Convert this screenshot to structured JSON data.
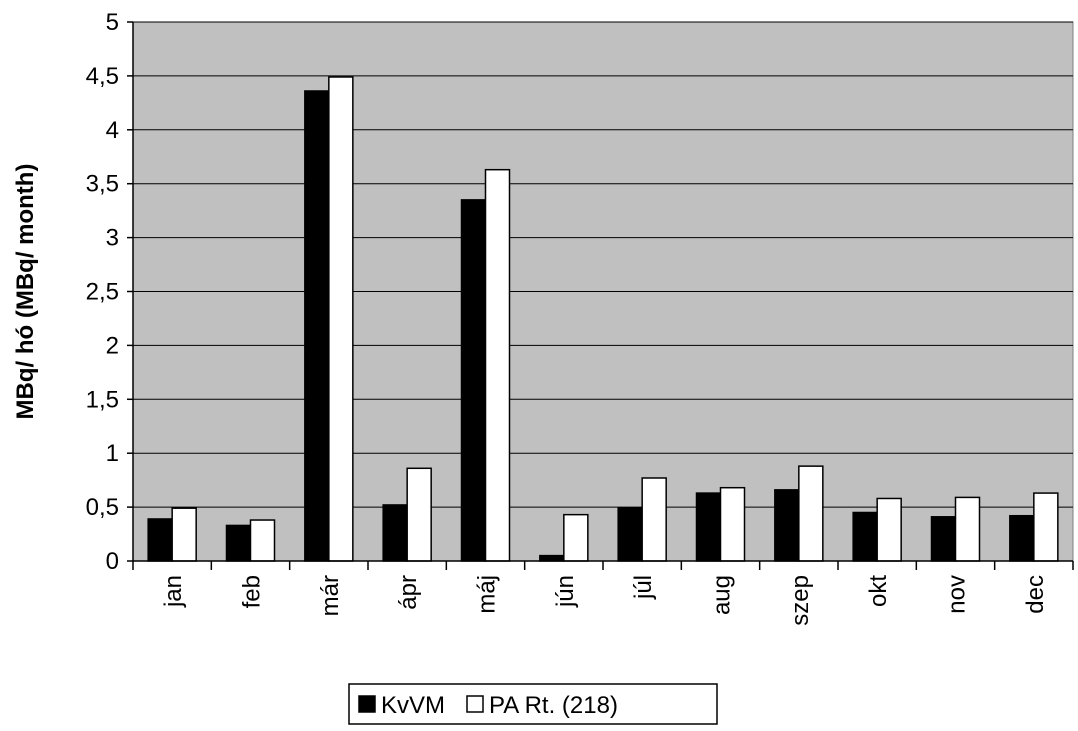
{
  "chart_data": {
    "type": "bar",
    "title": "",
    "xlabel": "",
    "ylabel": "MBq/ hó (MBq/ month)",
    "ylim": [
      0,
      5
    ],
    "y_ticks": [
      "0",
      "0,5",
      "1",
      "1,5",
      "2",
      "2,5",
      "3",
      "3,5",
      "4",
      "4,5",
      "5"
    ],
    "y_tick_values": [
      0,
      0.5,
      1,
      1.5,
      2,
      2.5,
      3,
      3.5,
      4,
      4.5,
      5
    ],
    "grid": true,
    "legend_position": "bottom",
    "categories": [
      "jan",
      "feb",
      "már",
      "ápr",
      "máj",
      "jún",
      "júl",
      "aug",
      "szep",
      "okt",
      "nov",
      "dec"
    ],
    "series": [
      {
        "name": "KvVM",
        "color": "#000000",
        "values": [
          0.39,
          0.33,
          4.36,
          0.52,
          3.35,
          0.05,
          0.49,
          0.63,
          0.66,
          0.45,
          0.41,
          0.42
        ]
      },
      {
        "name": "PA Rt. (218)",
        "color": "#ffffff",
        "values": [
          0.49,
          0.38,
          4.49,
          0.86,
          3.63,
          0.43,
          0.77,
          0.68,
          0.88,
          0.58,
          0.59,
          0.63
        ]
      }
    ],
    "plot_background": "#c0c0c0"
  }
}
